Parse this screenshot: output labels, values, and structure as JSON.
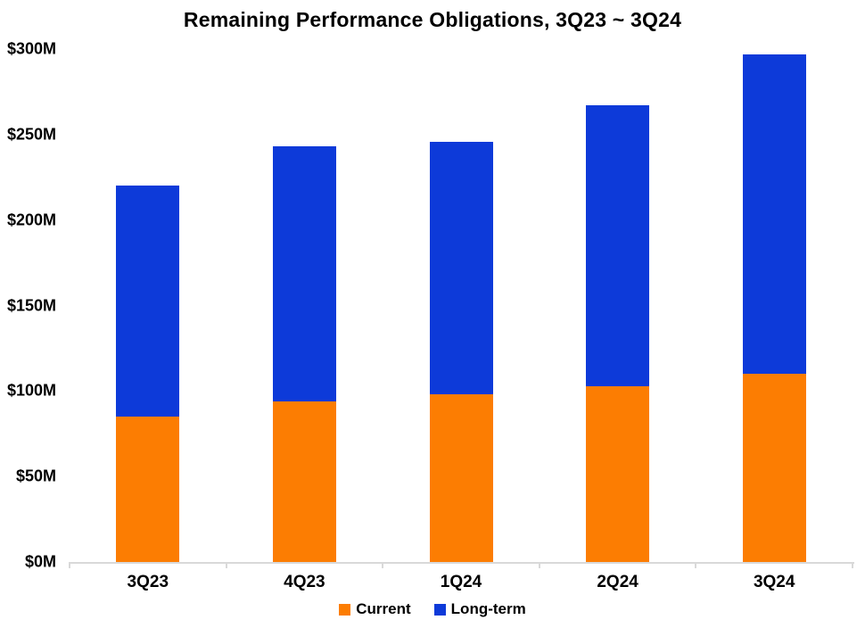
{
  "chart_data": {
    "type": "bar",
    "stacked": true,
    "title": "Remaining Performance Obligations, 3Q23 ~ 3Q24",
    "categories": [
      "3Q23",
      "4Q23",
      "1Q24",
      "2Q24",
      "3Q24"
    ],
    "series": [
      {
        "name": "Current",
        "color": "#FC7D02",
        "values": [
          85,
          94,
          98,
          103,
          110
        ]
      },
      {
        "name": "Long-term",
        "color": "#0D3AD9",
        "values": [
          135,
          149,
          148,
          164,
          187
        ]
      }
    ],
    "stack_totals": [
      220,
      243,
      246,
      267,
      297
    ],
    "y_axis": {
      "unit": "M",
      "currency": "$",
      "tick_labels": [
        "$0M",
        "$50M",
        "$100M",
        "$150M",
        "$200M",
        "$250M",
        "$300M"
      ],
      "tick_values": [
        0,
        50,
        100,
        150,
        200,
        250,
        300
      ],
      "min": 0,
      "max": 300
    },
    "x_axis": {
      "label": ""
    },
    "legend": {
      "position": "bottom",
      "items": [
        "Current",
        "Long-term"
      ]
    },
    "grid": false,
    "axis_color": "#d9d9d9",
    "text_color": "#000000",
    "background": "#ffffff"
  }
}
